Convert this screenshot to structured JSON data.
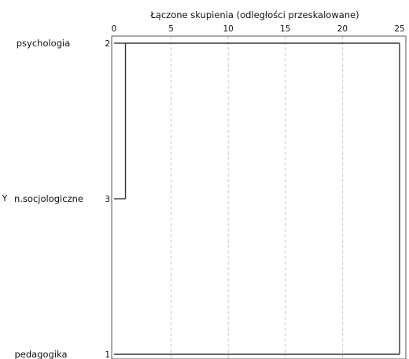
{
  "chart_data": {
    "type": "dendrogram",
    "title": "Łączone skupienia (odległości przeskalowane)",
    "x_ticks": [
      0,
      5,
      10,
      15,
      20,
      25
    ],
    "xlim": [
      0,
      25
    ],
    "grid": true,
    "cases": [
      {
        "label": "psychologia",
        "number": "2"
      },
      {
        "label": "n.socjologiczne",
        "number": "3",
        "marker": "Y"
      },
      {
        "label": "pedagogika",
        "number": "1"
      }
    ],
    "merges": [
      {
        "members": [
          "2",
          "3"
        ],
        "distance": 1
      },
      {
        "members": [
          "2-3",
          "1"
        ],
        "distance": 25
      }
    ]
  }
}
